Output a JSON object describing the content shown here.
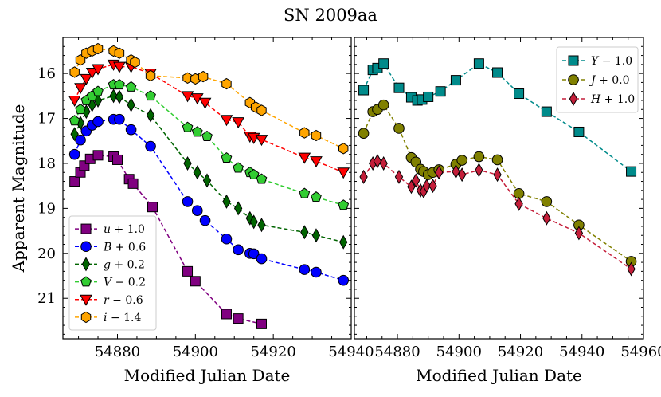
{
  "chart_data": {
    "type": "scatter",
    "suptitle": "SN 2009aa",
    "panels": [
      {
        "id": "optical",
        "xlabel": "Modified Julian Date",
        "ylabel": "Apparent Magnitude",
        "xlim": [
          54866,
          54940
        ],
        "ylim": [
          21.9,
          15.2
        ],
        "y_inverted": true,
        "xticks": [
          54880,
          54900,
          54920,
          54940
        ],
        "yticks": [
          16,
          17,
          18,
          19,
          20,
          21
        ],
        "legend_position": "lower-left",
        "series": [
          {
            "name": "u + 1.0",
            "label_text": "u",
            "label_op": "+",
            "label_num": "1.0",
            "color": "#800080",
            "marker": "square",
            "x": [
              54869.0,
              54870.5,
              54871.5,
              54873.0,
              54875.0,
              54879.0,
              54880.0,
              54883.0,
              54884.0,
              54889.0,
              54898.0,
              54900.0,
              54908.0,
              54911.0,
              54917.0
            ],
            "y": [
              18.4,
              18.2,
              18.05,
              17.9,
              17.82,
              17.85,
              17.92,
              18.35,
              18.45,
              18.97,
              20.4,
              20.62,
              21.35,
              21.45,
              21.57
            ]
          },
          {
            "name": "B + 0.6",
            "label_text": "B",
            "label_op": "+",
            "label_num": "0.6",
            "color": "#0000ff",
            "marker": "circle",
            "x": [
              54869.0,
              54870.5,
              54872.0,
              54873.5,
              54875.0,
              54879.0,
              54880.5,
              54883.5,
              54888.5,
              54898.0,
              54900.5,
              54902.5,
              54908.0,
              54911.0,
              54914.0,
              54915.0,
              54917.0,
              54928.0,
              54931.0,
              54938.0
            ],
            "y": [
              17.8,
              17.48,
              17.28,
              17.15,
              17.07,
              17.02,
              17.02,
              17.25,
              17.62,
              18.85,
              19.05,
              19.27,
              19.68,
              19.92,
              20.0,
              20.01,
              20.12,
              20.36,
              20.42,
              20.6
            ]
          },
          {
            "name": "g + 0.2",
            "label_text": "g",
            "label_op": "+",
            "label_num": "0.2",
            "color": "#006400",
            "marker": "thin_diamond",
            "x": [
              54869.0,
              54870.5,
              54872.0,
              54873.5,
              54875.0,
              54879.0,
              54880.5,
              54883.5,
              54888.5,
              54898.0,
              54900.5,
              54903.0,
              54908.0,
              54911.0,
              54914.0,
              54915.0,
              54917.0,
              54928.0,
              54931.0,
              54938.0
            ],
            "y": [
              17.35,
              17.1,
              16.85,
              16.7,
              16.6,
              16.5,
              16.52,
              16.7,
              16.93,
              18.0,
              18.2,
              18.38,
              18.85,
              19.0,
              19.22,
              19.3,
              19.37,
              19.53,
              19.6,
              19.75
            ]
          },
          {
            "name": "V − 0.2",
            "label_text": "V",
            "label_op": "−",
            "label_num": "0.2",
            "color": "#32cd32",
            "marker": "pentagon",
            "x": [
              54869.0,
              54870.5,
              54872.0,
              54873.5,
              54875.0,
              54879.0,
              54880.5,
              54883.5,
              54888.5,
              54898.0,
              54900.5,
              54903.0,
              54908.0,
              54911.0,
              54914.0,
              54915.0,
              54917.0,
              54928.0,
              54931.0,
              54938.0
            ],
            "y": [
              17.05,
              16.8,
              16.6,
              16.5,
              16.4,
              16.25,
              16.25,
              16.3,
              16.5,
              17.2,
              17.3,
              17.4,
              17.88,
              18.1,
              18.2,
              18.25,
              18.35,
              18.67,
              18.75,
              18.93
            ]
          },
          {
            "name": "r − 0.6",
            "label_text": "r",
            "label_op": "−",
            "label_num": "0.6",
            "color": "#ff0000",
            "marker": "triangle_down",
            "x": [
              54869.0,
              54870.5,
              54872.0,
              54873.5,
              54875.0,
              54879.0,
              54880.5,
              54883.5,
              54888.5,
              54898.0,
              54900.5,
              54902.5,
              54908.0,
              54911.0,
              54914.0,
              54915.0,
              54917.0,
              54928.0,
              54931.0,
              54938.0
            ],
            "y": [
              16.6,
              16.32,
              16.12,
              15.98,
              15.9,
              15.8,
              15.85,
              15.85,
              16.0,
              16.5,
              16.55,
              16.65,
              17.03,
              17.08,
              17.4,
              17.43,
              17.47,
              17.87,
              17.95,
              18.2
            ]
          },
          {
            "name": "i − 1.4",
            "label_text": "i",
            "label_op": "−",
            "label_num": "1.4",
            "color": "#ffa500",
            "marker": "hexagon",
            "x": [
              54869.0,
              54870.5,
              54872.0,
              54873.5,
              54875.0,
              54879.0,
              54880.5,
              54883.5,
              54884.5,
              54888.5,
              54898.0,
              54900.0,
              54902.0,
              54908.0,
              54914.0,
              54915.5,
              54917.0,
              54928.0,
              54931.0,
              54938.0
            ],
            "y": [
              15.97,
              15.7,
              15.55,
              15.5,
              15.45,
              15.5,
              15.55,
              15.7,
              15.75,
              16.05,
              16.1,
              16.12,
              16.07,
              16.23,
              16.65,
              16.75,
              16.82,
              17.32,
              17.38,
              17.67
            ]
          }
        ]
      },
      {
        "id": "nir",
        "xlabel": "Modified Julian Date",
        "ylabel": "",
        "xlim": [
          54866,
          54960
        ],
        "ylim": [
          21.9,
          15.2
        ],
        "y_inverted": true,
        "xticks": [
          54880,
          54900,
          54920,
          54940,
          54960
        ],
        "yticks": [
          16,
          17,
          18,
          19,
          20,
          21
        ],
        "legend_position": "top-right",
        "series": [
          {
            "name": "Y − 1.0",
            "label_text": "Y",
            "label_op": "−",
            "label_num": "1.0",
            "color": "#008b8b",
            "marker": "square",
            "x": [
              54869.0,
              54872.0,
              54873.5,
              54875.5,
              54880.5,
              54884.5,
              54886.5,
              54888.0,
              54890.0,
              54894.0,
              54899.0,
              54906.5,
              54912.5,
              54919.5,
              54928.5,
              54939.0,
              54956.0
            ],
            "y": [
              16.37,
              15.92,
              15.88,
              15.78,
              16.32,
              16.53,
              16.6,
              16.58,
              16.52,
              16.4,
              16.15,
              15.78,
              15.98,
              16.45,
              16.85,
              17.3,
              18.18
            ]
          },
          {
            "name": "J + 0.0",
            "label_text": "J",
            "label_op": "+",
            "label_num": "0.0",
            "color": "#808000",
            "marker": "circle",
            "x": [
              54869.0,
              54872.0,
              54873.5,
              54875.5,
              54880.5,
              54884.5,
              54886.0,
              54887.5,
              54888.5,
              54890.0,
              54891.5,
              54893.5,
              54899.0,
              54901.0,
              54906.5,
              54912.5,
              54919.5,
              54928.5,
              54939.0,
              54956.0
            ],
            "y": [
              17.33,
              16.85,
              16.8,
              16.7,
              17.22,
              17.87,
              17.97,
              18.13,
              18.18,
              18.25,
              18.2,
              18.14,
              18.02,
              17.93,
              17.85,
              17.92,
              18.67,
              18.85,
              19.37,
              20.18
            ]
          },
          {
            "name": "H + 1.0",
            "label_text": "H",
            "label_op": "+",
            "label_num": "1.0",
            "color": "#c41e3a",
            "marker": "thin_diamond",
            "x": [
              54869.0,
              54872.0,
              54873.5,
              54875.5,
              54880.5,
              54884.5,
              54886.0,
              54887.5,
              54888.5,
              54889.5,
              54891.5,
              54893.5,
              54899.0,
              54901.0,
              54906.5,
              54912.5,
              54919.5,
              54928.5,
              54939.0,
              54956.0
            ],
            "y": [
              18.3,
              18.0,
              17.95,
              18.0,
              18.3,
              18.52,
              18.38,
              18.6,
              18.62,
              18.5,
              18.5,
              18.2,
              18.18,
              18.25,
              18.15,
              18.25,
              18.9,
              19.22,
              19.55,
              20.35
            ]
          }
        ]
      }
    ]
  }
}
